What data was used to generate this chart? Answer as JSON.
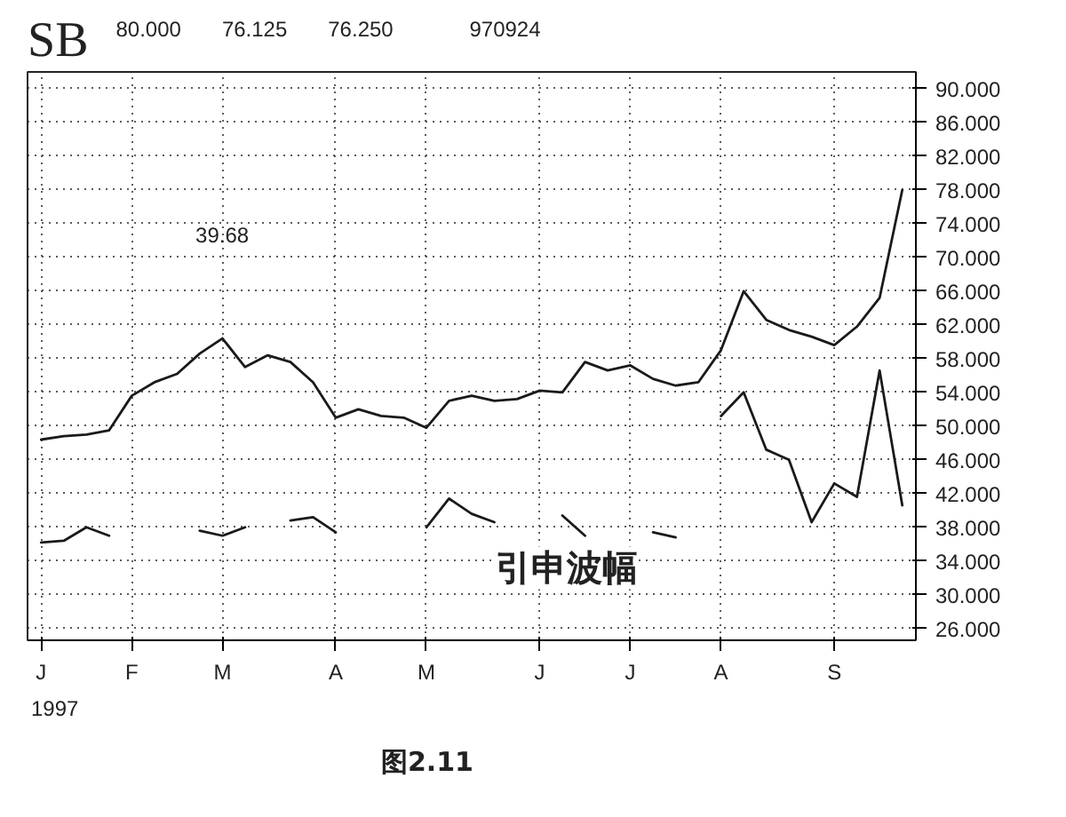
{
  "chart_data": {
    "type": "line",
    "title": "SB",
    "annotations": [
      "80.000",
      "76.125",
      "76.250",
      "970924",
      "39.68",
      "引申波幅",
      "1997",
      "图2.11"
    ],
    "categories": [
      "J",
      null,
      null,
      null,
      "F",
      null,
      null,
      null,
      "M",
      null,
      null,
      null,
      null,
      "A",
      null,
      null,
      null,
      "M",
      null,
      null,
      null,
      null,
      "J",
      null,
      null,
      null,
      "J",
      null,
      null,
      null,
      "A",
      null,
      null,
      null,
      null,
      "S",
      null,
      null,
      null
    ],
    "ylim": [
      24.6,
      92
    ],
    "yticks": [
      {
        "value": 26,
        "label": "26.000"
      },
      {
        "value": 30,
        "label": "30.000"
      },
      {
        "value": 34,
        "label": "34.000"
      },
      {
        "value": 38,
        "label": "38.000"
      },
      {
        "value": 42,
        "label": "42.000"
      },
      {
        "value": 46,
        "label": "46.000"
      },
      {
        "value": 50,
        "label": "50.000"
      },
      {
        "value": 54,
        "label": "54.000"
      },
      {
        "value": 58,
        "label": "58.000"
      },
      {
        "value": 62,
        "label": "62.000"
      },
      {
        "value": 66,
        "label": "66.000"
      },
      {
        "value": 70,
        "label": "70.000"
      },
      {
        "value": 74,
        "label": "74.000"
      },
      {
        "value": 78,
        "label": "78.000"
      },
      {
        "value": 82,
        "label": "82.000"
      },
      {
        "value": 86,
        "label": "86.000"
      },
      {
        "value": 90,
        "label": "90.000"
      }
    ],
    "grid": true,
    "line_style": "solid",
    "series": [
      {
        "color": "#1a1a1a",
        "values": [
          48.4,
          48.8,
          49.0,
          49.5,
          53.6,
          55.2,
          56.2,
          58.6,
          60.4,
          57.0,
          58.4,
          57.6,
          55.2,
          51.0,
          52.0,
          51.2,
          51.0,
          49.8,
          53.0,
          53.6,
          53.0,
          53.2,
          54.2,
          54.0,
          57.6,
          56.6,
          57.2,
          55.6,
          54.8,
          55.2,
          59.0,
          66.0,
          62.6,
          61.4,
          60.6,
          59.6,
          61.8,
          65.2,
          78.0
        ]
      },
      {
        "color": "#1a1a1a",
        "values": [
          36.2,
          36.4,
          38.0,
          37.0,
          null,
          null,
          null,
          37.6,
          37.0,
          38.0,
          null,
          38.8,
          39.2,
          37.4,
          null,
          null,
          null,
          38.0,
          41.4,
          39.6,
          38.6,
          null,
          null,
          39.4,
          37.0,
          null,
          null,
          37.4,
          36.8,
          null,
          51.2,
          54.0,
          47.2,
          46.0,
          38.6,
          43.2,
          41.6,
          56.6,
          40.6
        ]
      }
    ]
  }
}
